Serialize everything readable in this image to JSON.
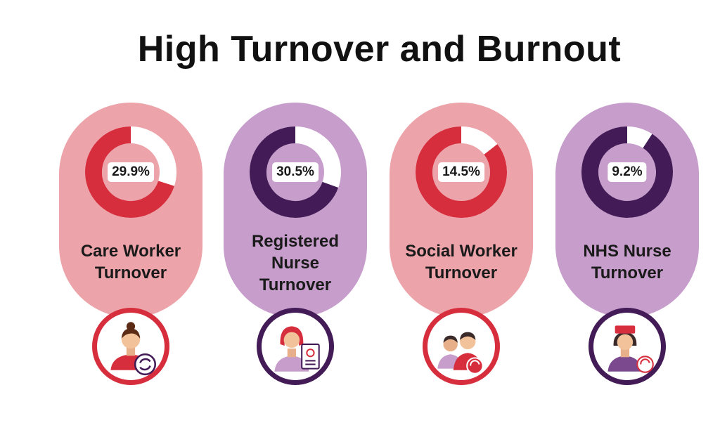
{
  "title": "High Turnover and Burnout",
  "colors": {
    "pink_bg": "#ECA3A9",
    "purple_bg": "#C69DCB",
    "red": "#D72E3E",
    "dark_purple": "#431B56",
    "white": "#FFFFFF"
  },
  "cards": [
    {
      "label": "Care Worker\nTurnover",
      "percent_label": "29.9%",
      "icon": "care-worker-icon",
      "theme": "pink"
    },
    {
      "label": "Registered\nNurse\nTurnover",
      "percent_label": "30.5%",
      "icon": "registered-nurse-icon",
      "theme": "purple"
    },
    {
      "label": "Social Worker\nTurnover",
      "percent_label": "14.5%",
      "icon": "social-workers-icon",
      "theme": "pink"
    },
    {
      "label": "NHS Nurse\nTurnover",
      "percent_label": "9.2%",
      "icon": "nhs-nurse-icon",
      "theme": "purple"
    }
  ],
  "chart_data": {
    "type": "pie",
    "title": "High Turnover and Burnout",
    "categories": [
      "Care Worker Turnover",
      "Registered Nurse Turnover",
      "Social Worker Turnover",
      "NHS Nurse Turnover"
    ],
    "values": [
      29.9,
      30.5,
      14.5,
      9.2
    ]
  }
}
